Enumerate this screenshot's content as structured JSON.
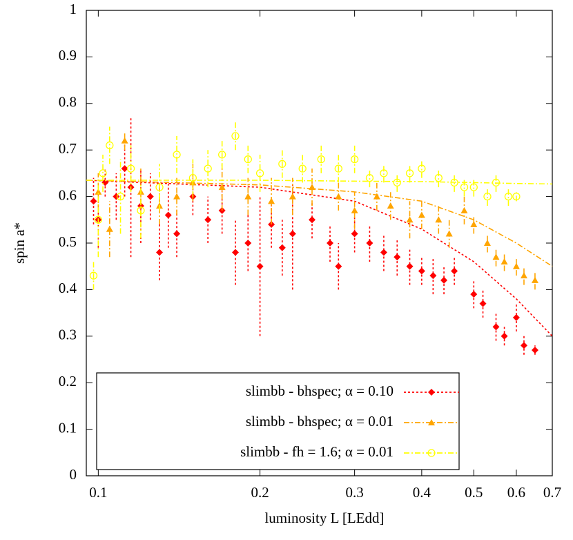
{
  "chart_data": {
    "type": "scatter",
    "xlabel": "luminosity L [LEdd]",
    "ylabel": "spin a*",
    "xscale": "log",
    "xlim": [
      0.095,
      0.7
    ],
    "ylim": [
      0,
      1
    ],
    "xticks": [
      0.1,
      0.2,
      0.3,
      0.4,
      0.5,
      0.6,
      0.7
    ],
    "yticks": [
      0,
      0.1,
      0.2,
      0.3,
      0.4,
      0.5,
      0.6,
      0.7,
      0.8,
      0.9,
      1
    ],
    "legend": "bottom-left",
    "series": [
      {
        "name": "slimbb - bhspec; α = 0.10",
        "color": "#ff0000",
        "marker": "diamond",
        "x": [
          0.098,
          0.1,
          0.103,
          0.108,
          0.112,
          0.115,
          0.12,
          0.125,
          0.13,
          0.135,
          0.14,
          0.15,
          0.16,
          0.17,
          0.18,
          0.19,
          0.2,
          0.21,
          0.22,
          0.23,
          0.25,
          0.27,
          0.28,
          0.3,
          0.32,
          0.34,
          0.36,
          0.38,
          0.4,
          0.42,
          0.44,
          0.46,
          0.5,
          0.52,
          0.55,
          0.57,
          0.6,
          0.62,
          0.65
        ],
        "values": [
          0.59,
          0.55,
          0.63,
          0.6,
          0.66,
          0.62,
          0.58,
          0.6,
          0.48,
          0.56,
          0.52,
          0.6,
          0.55,
          0.57,
          0.48,
          0.5,
          0.45,
          0.54,
          0.49,
          0.52,
          0.55,
          0.5,
          0.45,
          0.52,
          0.5,
          0.48,
          0.47,
          0.45,
          0.44,
          0.43,
          0.42,
          0.44,
          0.39,
          0.37,
          0.32,
          0.3,
          0.34,
          0.28,
          0.27
        ],
        "errors": [
          0.05,
          0.06,
          0.03,
          0.05,
          0.06,
          0.15,
          0.08,
          0.05,
          0.06,
          0.07,
          0.05,
          0.04,
          0.05,
          0.05,
          0.07,
          0.06,
          0.15,
          0.05,
          0.06,
          0.12,
          0.04,
          0.04,
          0.05,
          0.04,
          0.04,
          0.04,
          0.04,
          0.04,
          0.03,
          0.04,
          0.03,
          0.03,
          0.03,
          0.03,
          0.03,
          0.02,
          0.03,
          0.02,
          0.01
        ],
        "fit": {
          "x": [
            0.095,
            0.2,
            0.3,
            0.4,
            0.5,
            0.6,
            0.7
          ],
          "values": [
            0.635,
            0.62,
            0.59,
            0.53,
            0.46,
            0.38,
            0.3
          ]
        }
      },
      {
        "name": "slimbb - bhspec; α = 0.01",
        "color": "#ffa500",
        "marker": "triangle",
        "x": [
          0.1,
          0.105,
          0.112,
          0.12,
          0.13,
          0.14,
          0.15,
          0.17,
          0.19,
          0.21,
          0.23,
          0.25,
          0.28,
          0.3,
          0.33,
          0.35,
          0.38,
          0.4,
          0.43,
          0.45,
          0.48,
          0.5,
          0.53,
          0.55,
          0.57,
          0.6,
          0.62,
          0.65
        ],
        "values": [
          0.61,
          0.53,
          0.72,
          0.61,
          0.58,
          0.6,
          0.63,
          0.62,
          0.6,
          0.59,
          0.6,
          0.62,
          0.6,
          0.57,
          0.6,
          0.58,
          0.55,
          0.56,
          0.55,
          0.52,
          0.57,
          0.54,
          0.5,
          0.47,
          0.46,
          0.45,
          0.43,
          0.42
        ],
        "errors": [
          0.04,
          0.06,
          0.02,
          0.05,
          0.04,
          0.04,
          0.04,
          0.05,
          0.04,
          0.05,
          0.04,
          0.04,
          0.03,
          0.04,
          0.03,
          0.03,
          0.04,
          0.03,
          0.03,
          0.03,
          0.03,
          0.02,
          0.02,
          0.02,
          0.02,
          0.02,
          0.02,
          0.02
        ],
        "fit": {
          "x": [
            0.095,
            0.2,
            0.3,
            0.4,
            0.5,
            0.6,
            0.7
          ],
          "values": [
            0.635,
            0.625,
            0.61,
            0.59,
            0.55,
            0.5,
            0.45
          ]
        }
      },
      {
        "name": "slimbb - fh = 1.6; α = 0.01",
        "color": "#ffff00",
        "marker": "circle",
        "x": [
          0.098,
          0.1,
          0.102,
          0.105,
          0.11,
          0.115,
          0.12,
          0.13,
          0.14,
          0.15,
          0.16,
          0.17,
          0.18,
          0.19,
          0.2,
          0.22,
          0.24,
          0.26,
          0.28,
          0.3,
          0.32,
          0.34,
          0.36,
          0.38,
          0.4,
          0.43,
          0.46,
          0.48,
          0.5,
          0.53,
          0.55,
          0.58,
          0.6
        ],
        "values": [
          0.43,
          0.55,
          0.65,
          0.71,
          0.6,
          0.66,
          0.57,
          0.62,
          0.69,
          0.64,
          0.66,
          0.69,
          0.73,
          0.68,
          0.65,
          0.67,
          0.66,
          0.68,
          0.66,
          0.68,
          0.64,
          0.65,
          0.63,
          0.65,
          0.66,
          0.64,
          0.63,
          0.62,
          0.62,
          0.6,
          0.63,
          0.6,
          0.6
        ],
        "errors": [
          0.03,
          0.08,
          0.04,
          0.04,
          0.08,
          0.05,
          0.06,
          0.05,
          0.04,
          0.04,
          0.04,
          0.03,
          0.03,
          0.03,
          0.04,
          0.03,
          0.03,
          0.03,
          0.03,
          0.03,
          0.02,
          0.02,
          0.02,
          0.02,
          0.02,
          0.02,
          0.02,
          0.02,
          0.02,
          0.02,
          0.02,
          0.02,
          0.01
        ],
        "fit": {
          "x": [
            0.095,
            0.2,
            0.3,
            0.4,
            0.5,
            0.6,
            0.7
          ],
          "values": [
            0.635,
            0.635,
            0.633,
            0.632,
            0.63,
            0.628,
            0.627
          ]
        }
      }
    ]
  }
}
